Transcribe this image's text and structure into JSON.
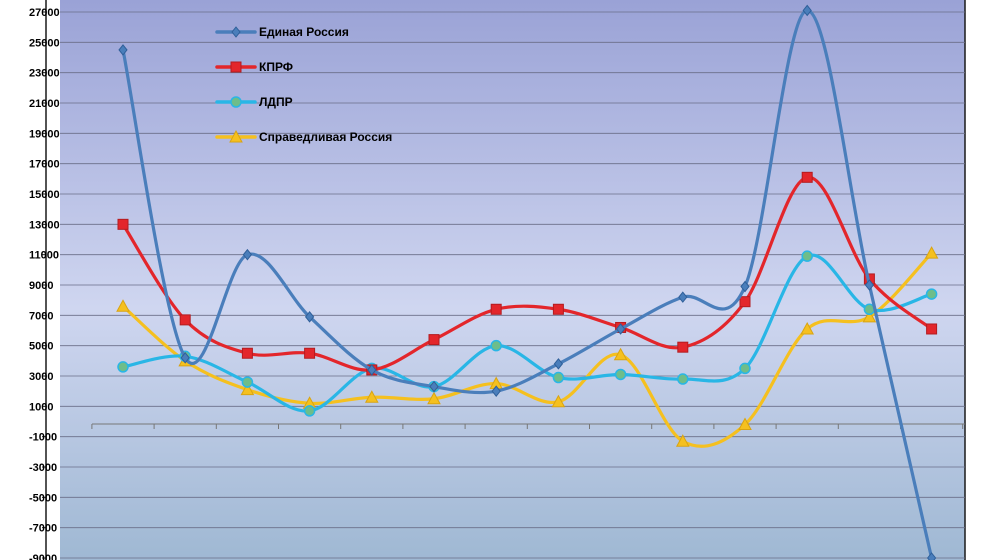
{
  "chart_data": {
    "type": "line",
    "x": [
      1,
      2,
      3,
      4,
      5,
      6,
      7,
      8,
      9,
      10,
      11,
      12,
      13,
      14
    ],
    "ylim": [
      -9000,
      27000
    ],
    "yticks": [
      27000,
      25000,
      23000,
      21000,
      19000,
      17000,
      15000,
      13000,
      11000,
      9000,
      7000,
      5000,
      3000,
      1000,
      -1000,
      -3000,
      -5000,
      -7000,
      -9000
    ],
    "grid": true,
    "legend_position": "top-left",
    "series": [
      {
        "name": "Единая Россия",
        "color": "#4a7ebb",
        "marker": "diamond",
        "values": [
          24500,
          4200,
          11000,
          6900,
          3400,
          2300,
          2000,
          3800,
          6100,
          8200,
          8900,
          27100,
          9000,
          -9000
        ]
      },
      {
        "name": "КПРФ",
        "color": "#e3262b",
        "marker": "square",
        "values": [
          13000,
          6700,
          4500,
          4500,
          3400,
          5400,
          7400,
          7400,
          6200,
          4900,
          7900,
          16100,
          9400,
          6100
        ]
      },
      {
        "name": "ЛДПР",
        "color": "#29b6e6",
        "marker": "circle",
        "values": [
          3600,
          4300,
          2600,
          700,
          3500,
          2300,
          5000,
          2900,
          3100,
          2800,
          3500,
          10900,
          7400,
          8400
        ]
      },
      {
        "name": "Справедливая Россия",
        "color": "#f5c01f",
        "marker": "triangle",
        "values": [
          7600,
          4000,
          2100,
          1200,
          1600,
          1500,
          2500,
          1300,
          4400,
          -1300,
          -200,
          6100,
          6900,
          11100
        ]
      }
    ]
  }
}
